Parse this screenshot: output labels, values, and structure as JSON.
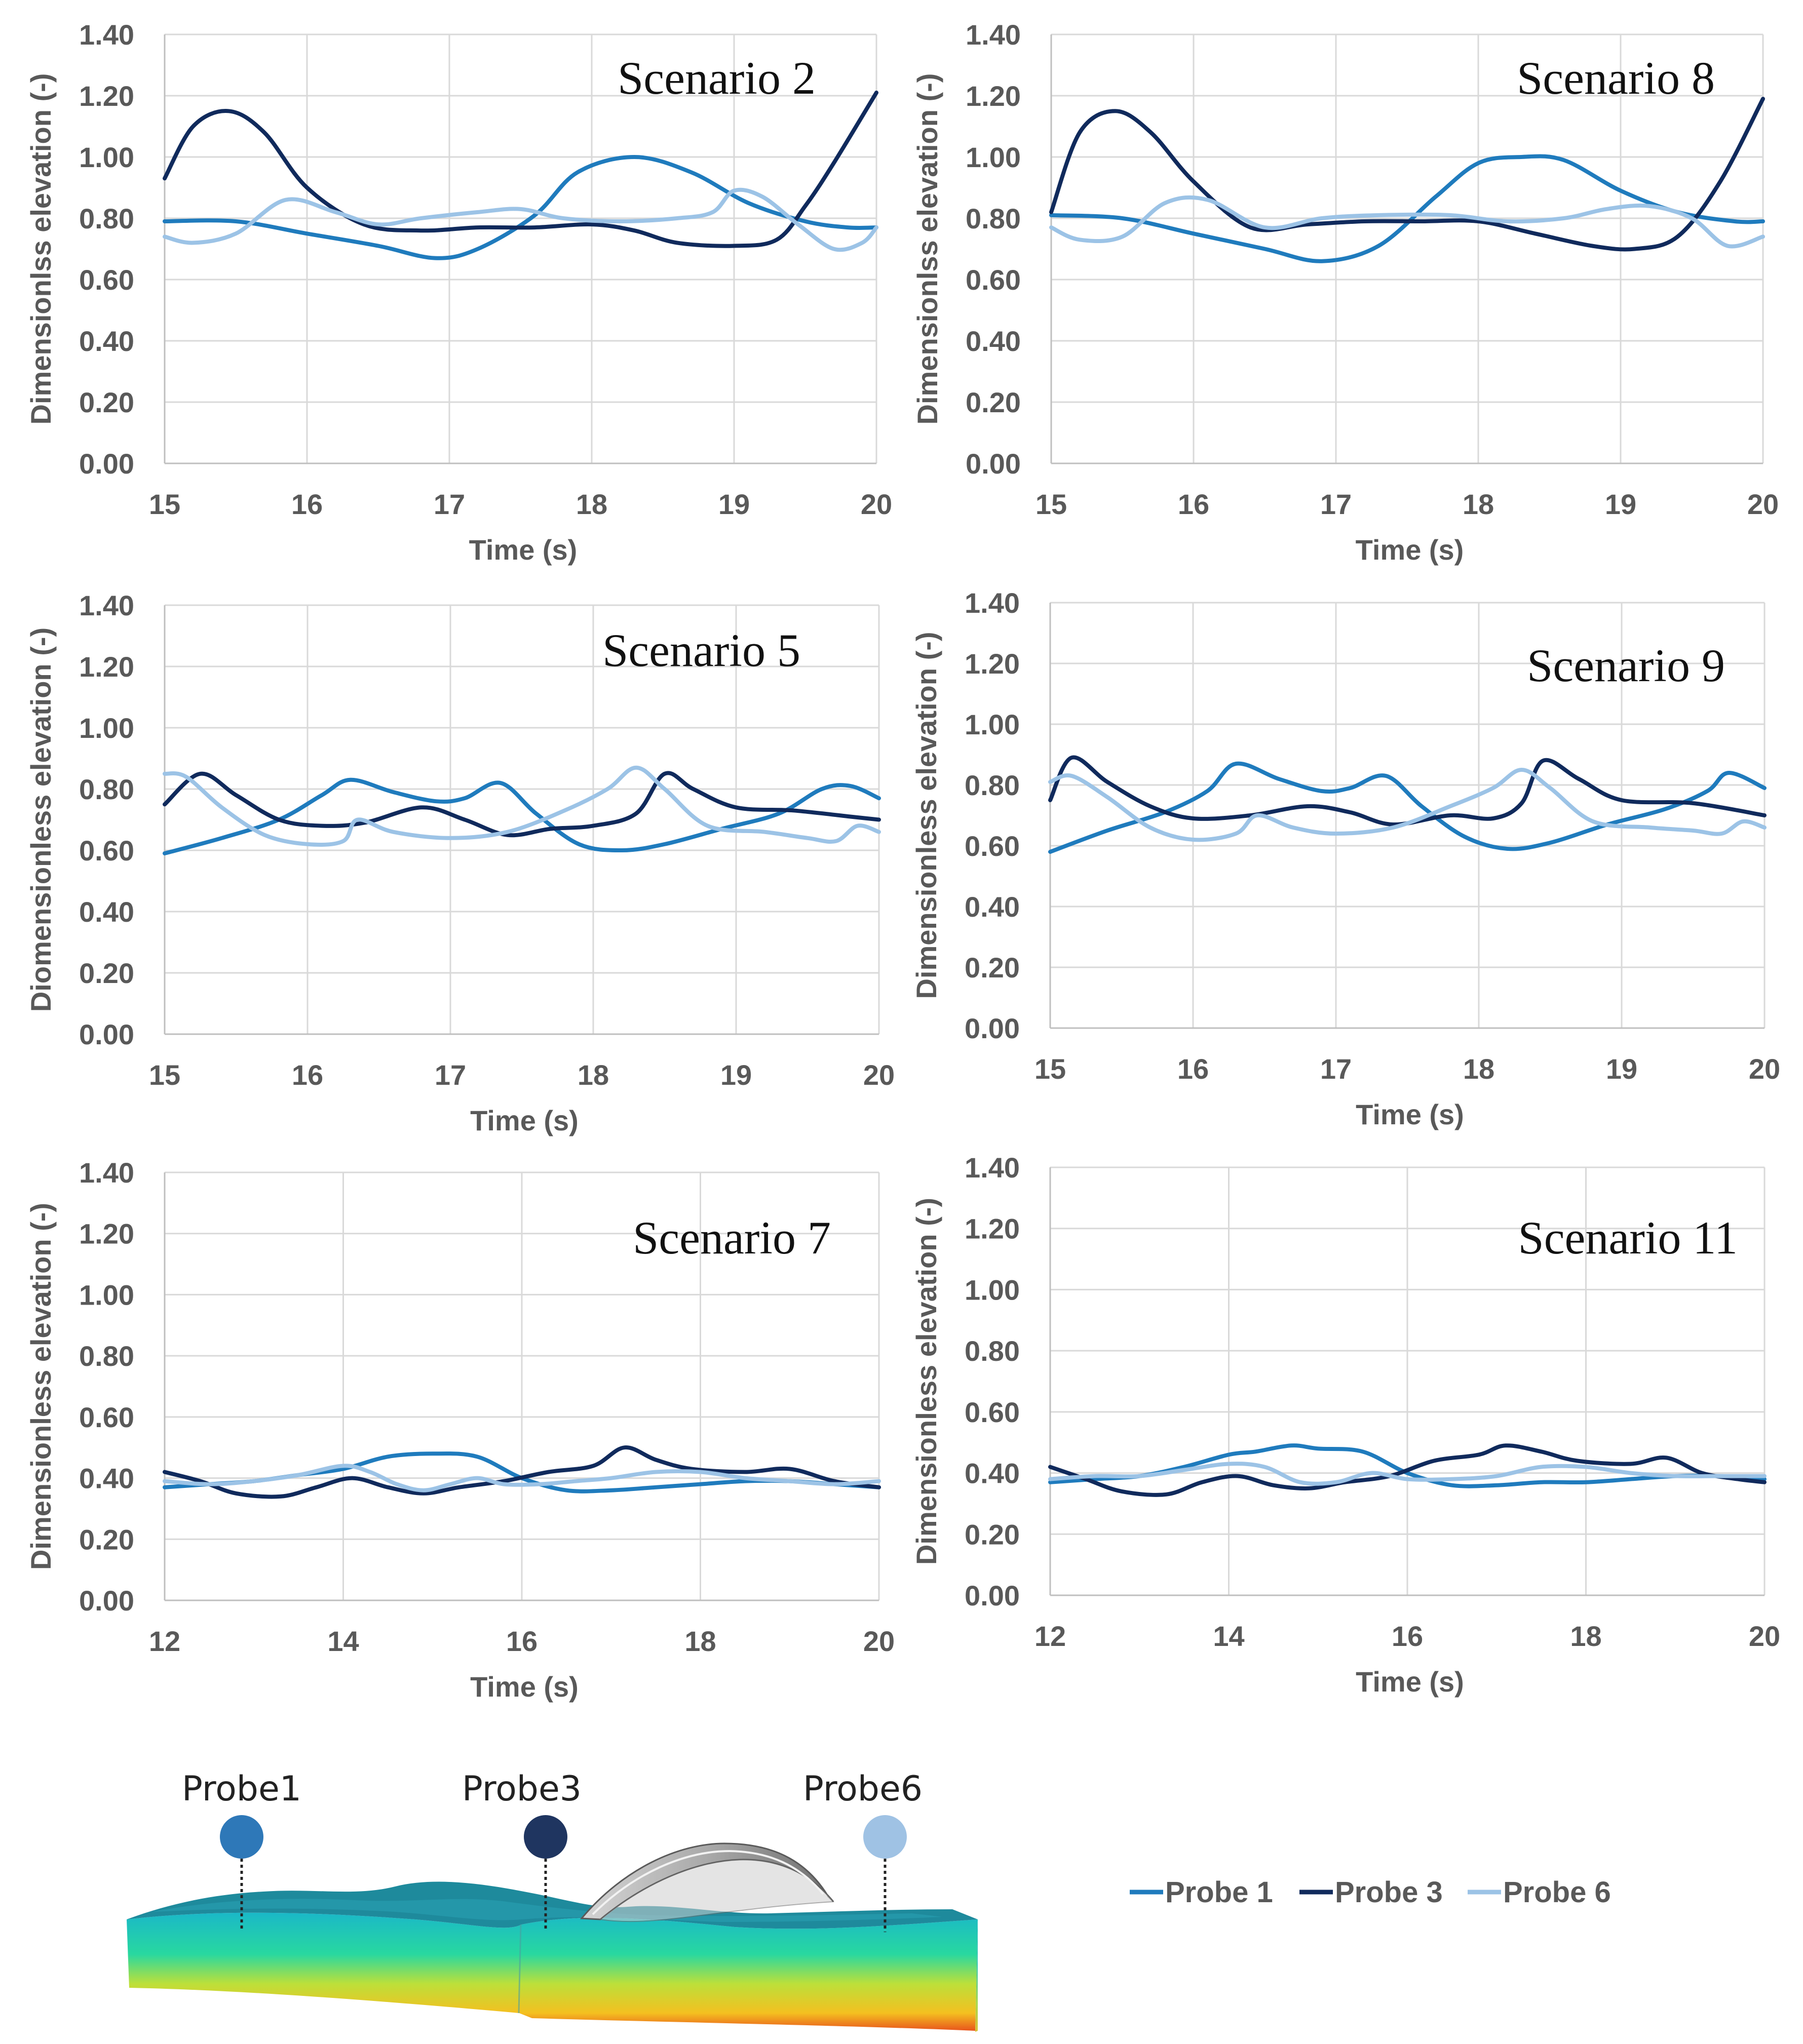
{
  "colors": {
    "probe1": "#1f7bbd",
    "probe3": "#102a5c",
    "probe6": "#9cc3e6"
  },
  "legend": [
    {
      "label": "Probe 1",
      "color": "#1f7bbd"
    },
    {
      "label": "Probe 3",
      "color": "#102a5c"
    },
    {
      "label": "Probe 6",
      "color": "#9cc3e6"
    }
  ],
  "diagram": {
    "probes": [
      {
        "label": "Probe1",
        "color": "#2e78b8"
      },
      {
        "label": "Probe3",
        "color": "#1f3560"
      },
      {
        "label": "Probe6",
        "color": "#9fc2e4"
      }
    ]
  },
  "chart_data": [
    {
      "type": "line",
      "title": "Scenario 2",
      "xlabel": "Time (s)",
      "ylabel": "Dimensionlss elevation (-)",
      "xlim": [
        15,
        20
      ],
      "ylim": [
        0,
        1.4
      ],
      "xticks": [
        "15",
        "16",
        "17",
        "18",
        "19",
        "20"
      ],
      "yticks": [
        "0.00",
        "0.20",
        "0.40",
        "0.60",
        "0.80",
        "1.00",
        "1.20",
        "1.40"
      ],
      "series": [
        {
          "name": "Probe 1",
          "x": [
            15,
            15.5,
            16,
            16.5,
            16.9,
            17.2,
            17.6,
            17.9,
            18.3,
            18.7,
            19.1,
            19.5,
            19.8,
            20
          ],
          "y": [
            0.79,
            0.79,
            0.75,
            0.71,
            0.67,
            0.7,
            0.81,
            0.95,
            1.0,
            0.95,
            0.85,
            0.79,
            0.77,
            0.77
          ]
        },
        {
          "name": "Probe 3",
          "x": [
            15,
            15.2,
            15.45,
            15.7,
            16.0,
            16.4,
            16.8,
            17.2,
            17.6,
            18.0,
            18.3,
            18.6,
            19.0,
            19.3,
            19.5,
            19.7,
            20
          ],
          "y": [
            0.93,
            1.1,
            1.15,
            1.08,
            0.9,
            0.78,
            0.76,
            0.77,
            0.77,
            0.78,
            0.76,
            0.72,
            0.71,
            0.73,
            0.84,
            0.98,
            1.21
          ]
        },
        {
          "name": "Probe 6",
          "x": [
            15,
            15.2,
            15.5,
            15.85,
            16.2,
            16.5,
            16.8,
            17.2,
            17.5,
            17.8,
            18.2,
            18.6,
            18.85,
            19.0,
            19.2,
            19.45,
            19.7,
            19.9,
            20
          ],
          "y": [
            0.74,
            0.72,
            0.75,
            0.86,
            0.82,
            0.78,
            0.8,
            0.82,
            0.83,
            0.8,
            0.79,
            0.8,
            0.82,
            0.89,
            0.87,
            0.78,
            0.7,
            0.72,
            0.77
          ]
        }
      ]
    },
    {
      "type": "line",
      "title": "Scenario 8",
      "xlabel": "Time (s)",
      "ylabel": "Dimensionlss elevation (-)",
      "xlim": [
        15,
        20
      ],
      "ylim": [
        0,
        1.4
      ],
      "xticks": [
        "15",
        "16",
        "17",
        "18",
        "19",
        "20"
      ],
      "yticks": [
        "0.00",
        "0.20",
        "0.40",
        "0.60",
        "0.80",
        "1.00",
        "1.20",
        "1.40"
      ],
      "series": [
        {
          "name": "Probe 1",
          "x": [
            15,
            15.5,
            16,
            16.5,
            16.9,
            17.3,
            17.7,
            18.0,
            18.3,
            18.6,
            19.0,
            19.4,
            19.8,
            20
          ],
          "y": [
            0.81,
            0.8,
            0.75,
            0.7,
            0.66,
            0.71,
            0.87,
            0.98,
            1.0,
            0.99,
            0.89,
            0.82,
            0.79,
            0.79
          ]
        },
        {
          "name": "Probe 3",
          "x": [
            15,
            15.2,
            15.45,
            15.7,
            16.0,
            16.4,
            16.8,
            17.2,
            17.6,
            18.0,
            18.4,
            18.8,
            19.1,
            19.4,
            19.7,
            20
          ],
          "y": [
            0.82,
            1.08,
            1.15,
            1.08,
            0.92,
            0.77,
            0.78,
            0.79,
            0.79,
            0.79,
            0.75,
            0.71,
            0.7,
            0.74,
            0.92,
            1.19
          ]
        },
        {
          "name": "Probe 6",
          "x": [
            15,
            15.2,
            15.5,
            15.8,
            16.1,
            16.5,
            16.9,
            17.3,
            17.8,
            18.2,
            18.6,
            18.9,
            19.2,
            19.5,
            19.75,
            20
          ],
          "y": [
            0.77,
            0.73,
            0.74,
            0.85,
            0.86,
            0.77,
            0.8,
            0.81,
            0.81,
            0.79,
            0.8,
            0.83,
            0.84,
            0.8,
            0.71,
            0.74
          ]
        }
      ]
    },
    {
      "type": "line",
      "title": "Scenario 5",
      "xlabel": "Time (s)",
      "ylabel": "Diomensionless elevation (-)",
      "xlim": [
        15,
        20
      ],
      "ylim": [
        0,
        1.4
      ],
      "xticks": [
        "15",
        "16",
        "17",
        "18",
        "19",
        "20"
      ],
      "yticks": [
        "0.00",
        "0.20",
        "0.40",
        "0.60",
        "0.80",
        "1.00",
        "1.20",
        "1.40"
      ],
      "series": [
        {
          "name": "Probe 1",
          "x": [
            15,
            15.4,
            15.8,
            16.1,
            16.3,
            16.6,
            16.9,
            17.1,
            17.35,
            17.6,
            17.9,
            18.2,
            18.5,
            18.9,
            19.3,
            19.6,
            19.8,
            20
          ],
          "y": [
            0.59,
            0.64,
            0.7,
            0.78,
            0.83,
            0.79,
            0.76,
            0.77,
            0.82,
            0.72,
            0.62,
            0.6,
            0.62,
            0.67,
            0.72,
            0.8,
            0.81,
            0.77
          ]
        },
        {
          "name": "Probe 3",
          "x": [
            15,
            15.25,
            15.5,
            15.8,
            16.1,
            16.4,
            16.8,
            17.1,
            17.4,
            17.7,
            18.0,
            18.3,
            18.5,
            18.7,
            19.0,
            19.4,
            19.8,
            20
          ],
          "y": [
            0.75,
            0.85,
            0.78,
            0.7,
            0.68,
            0.69,
            0.74,
            0.7,
            0.65,
            0.67,
            0.68,
            0.72,
            0.85,
            0.8,
            0.74,
            0.73,
            0.71,
            0.7
          ]
        },
        {
          "name": "Probe 6",
          "x": [
            15,
            15.15,
            15.4,
            15.7,
            16.0,
            16.25,
            16.35,
            16.6,
            17.0,
            17.4,
            17.8,
            18.1,
            18.3,
            18.5,
            18.8,
            19.2,
            19.5,
            19.7,
            19.85,
            20
          ],
          "y": [
            0.85,
            0.84,
            0.74,
            0.65,
            0.62,
            0.63,
            0.7,
            0.66,
            0.64,
            0.66,
            0.73,
            0.8,
            0.87,
            0.8,
            0.68,
            0.66,
            0.64,
            0.63,
            0.68,
            0.66
          ]
        }
      ]
    },
    {
      "type": "line",
      "title": "Scenario 9",
      "xlabel": "Time (s)",
      "ylabel": "Dimensionless elevation (-)",
      "xlim": [
        15,
        20
      ],
      "ylim": [
        0,
        1.4
      ],
      "xticks": [
        "15",
        "16",
        "17",
        "18",
        "19",
        "20"
      ],
      "yticks": [
        "0.00",
        "0.20",
        "0.40",
        "0.60",
        "0.80",
        "1.00",
        "1.20",
        "1.40"
      ],
      "series": [
        {
          "name": "Probe 1",
          "x": [
            15,
            15.4,
            15.8,
            16.1,
            16.3,
            16.6,
            16.9,
            17.1,
            17.35,
            17.6,
            17.9,
            18.2,
            18.5,
            18.9,
            19.3,
            19.6,
            19.75,
            20
          ],
          "y": [
            0.58,
            0.65,
            0.71,
            0.78,
            0.87,
            0.82,
            0.78,
            0.79,
            0.83,
            0.73,
            0.63,
            0.59,
            0.61,
            0.67,
            0.72,
            0.78,
            0.84,
            0.79
          ]
        },
        {
          "name": "Probe 3",
          "x": [
            15,
            15.15,
            15.4,
            15.7,
            16.0,
            16.4,
            16.8,
            17.1,
            17.4,
            17.8,
            18.1,
            18.3,
            18.45,
            18.7,
            19.0,
            19.5,
            20
          ],
          "y": [
            0.75,
            0.89,
            0.81,
            0.73,
            0.69,
            0.7,
            0.73,
            0.71,
            0.67,
            0.7,
            0.69,
            0.74,
            0.88,
            0.82,
            0.75,
            0.74,
            0.7
          ]
        },
        {
          "name": "Probe 6",
          "x": [
            15,
            15.15,
            15.4,
            15.7,
            16.0,
            16.3,
            16.45,
            16.7,
            17.0,
            17.4,
            17.8,
            18.1,
            18.3,
            18.5,
            18.8,
            19.2,
            19.5,
            19.7,
            19.85,
            20
          ],
          "y": [
            0.81,
            0.83,
            0.76,
            0.66,
            0.62,
            0.64,
            0.7,
            0.66,
            0.64,
            0.66,
            0.73,
            0.79,
            0.85,
            0.79,
            0.68,
            0.66,
            0.65,
            0.64,
            0.68,
            0.66
          ]
        }
      ]
    },
    {
      "type": "line",
      "title": "Scenario 7",
      "xlabel": "Time (s)",
      "ylabel": "Dimensionless elevation (-)",
      "xlim": [
        12,
        20
      ],
      "ylim": [
        0,
        1.4
      ],
      "xticks": [
        "12",
        "14",
        "16",
        "18",
        "20"
      ],
      "yticks": [
        "0.00",
        "0.20",
        "0.40",
        "0.60",
        "0.80",
        "1.00",
        "1.20",
        "1.40"
      ],
      "series": [
        {
          "name": "Probe 1",
          "x": [
            12,
            12.5,
            13,
            13.5,
            14,
            14.5,
            15,
            15.5,
            16,
            16.5,
            17,
            17.5,
            18,
            18.5,
            19,
            19.5,
            20
          ],
          "y": [
            0.37,
            0.38,
            0.39,
            0.41,
            0.43,
            0.47,
            0.48,
            0.47,
            0.4,
            0.36,
            0.36,
            0.37,
            0.38,
            0.39,
            0.39,
            0.38,
            0.37
          ]
        },
        {
          "name": "Probe 3",
          "x": [
            12,
            12.4,
            12.8,
            13.3,
            13.7,
            14.1,
            14.5,
            14.9,
            15.3,
            15.8,
            16.3,
            16.8,
            17.15,
            17.5,
            17.9,
            18.5,
            19.0,
            19.5,
            20
          ],
          "y": [
            0.42,
            0.39,
            0.35,
            0.34,
            0.37,
            0.4,
            0.37,
            0.35,
            0.37,
            0.39,
            0.42,
            0.44,
            0.5,
            0.46,
            0.43,
            0.42,
            0.43,
            0.39,
            0.37
          ]
        },
        {
          "name": "Probe 6",
          "x": [
            12,
            12.5,
            13,
            13.5,
            14,
            14.3,
            14.6,
            14.9,
            15.2,
            15.5,
            15.8,
            16.2,
            16.6,
            17.0,
            17.5,
            18.0,
            18.5,
            19.0,
            19.5,
            20
          ],
          "y": [
            0.39,
            0.38,
            0.39,
            0.41,
            0.44,
            0.42,
            0.38,
            0.36,
            0.38,
            0.4,
            0.38,
            0.38,
            0.39,
            0.4,
            0.42,
            0.42,
            0.4,
            0.39,
            0.38,
            0.39
          ]
        }
      ]
    },
    {
      "type": "line",
      "title": "Scenario 11",
      "xlabel": "Time (s)",
      "ylabel": "Dimensionless elevation (-)",
      "xlim": [
        12,
        20
      ],
      "ylim": [
        0,
        1.4
      ],
      "xticks": [
        "12",
        "14",
        "16",
        "18",
        "20"
      ],
      "yticks": [
        "0.00",
        "0.20",
        "0.40",
        "0.60",
        "0.80",
        "1.00",
        "1.20",
        "1.40"
      ],
      "series": [
        {
          "name": "Probe 1",
          "x": [
            12,
            12.5,
            13,
            13.5,
            14,
            14.3,
            14.7,
            15.0,
            15.5,
            16,
            16.5,
            17,
            17.5,
            18,
            18.5,
            19,
            19.5,
            20
          ],
          "y": [
            0.37,
            0.38,
            0.39,
            0.42,
            0.46,
            0.47,
            0.49,
            0.48,
            0.47,
            0.4,
            0.36,
            0.36,
            0.37,
            0.37,
            0.38,
            0.39,
            0.39,
            0.38
          ]
        },
        {
          "name": "Probe 3",
          "x": [
            12,
            12.4,
            12.8,
            13.3,
            13.7,
            14.1,
            14.5,
            14.9,
            15.3,
            15.8,
            16.3,
            16.8,
            17.1,
            17.5,
            17.9,
            18.5,
            18.9,
            19.3,
            19.7,
            20
          ],
          "y": [
            0.42,
            0.38,
            0.34,
            0.33,
            0.37,
            0.39,
            0.36,
            0.35,
            0.37,
            0.39,
            0.44,
            0.46,
            0.49,
            0.47,
            0.44,
            0.43,
            0.45,
            0.4,
            0.38,
            0.37
          ]
        },
        {
          "name": "Probe 6",
          "x": [
            12,
            12.5,
            13,
            13.5,
            14,
            14.4,
            14.8,
            15.2,
            15.6,
            16,
            16.5,
            17,
            17.5,
            18,
            18.5,
            19,
            19.5,
            20
          ],
          "y": [
            0.38,
            0.39,
            0.39,
            0.41,
            0.43,
            0.42,
            0.37,
            0.37,
            0.4,
            0.38,
            0.38,
            0.39,
            0.42,
            0.42,
            0.4,
            0.39,
            0.39,
            0.39
          ]
        }
      ]
    }
  ]
}
